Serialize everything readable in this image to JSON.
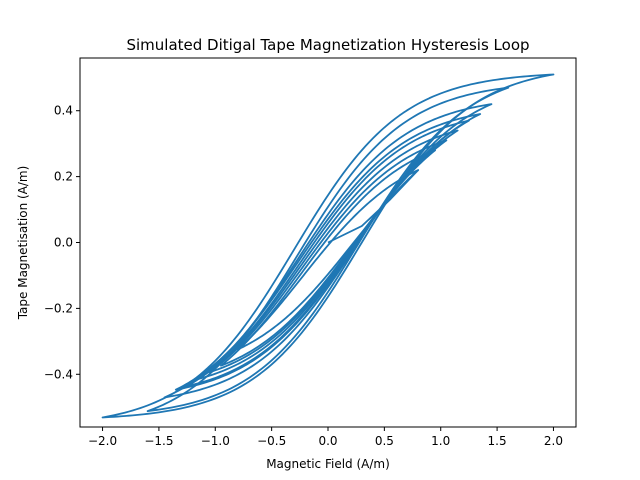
{
  "chart_data": {
    "type": "line",
    "title": "Simulated Ditigal Tape Magnetization Hysteresis Loop",
    "xlabel": "Magnetic Field (A/m)",
    "ylabel": "Tape Magnetisation (A/m)",
    "xlim": [
      -2.2,
      2.2
    ],
    "ylim": [
      -0.56,
      0.56
    ],
    "x_ticks": [
      -2.0,
      -1.5,
      -1.0,
      -0.5,
      0.0,
      0.5,
      1.0,
      1.5,
      2.0
    ],
    "x_tick_labels": [
      "−2.0",
      "−1.5",
      "−1.0",
      "−0.5",
      "0.0",
      "0.5",
      "1.0",
      "1.5",
      "2.0"
    ],
    "y_ticks": [
      -0.4,
      -0.2,
      0.0,
      0.2,
      0.4
    ],
    "y_tick_labels": [
      "−0.4",
      "−0.2",
      "0.0",
      "0.2",
      "0.4"
    ],
    "grid": false,
    "legend": "none",
    "series_color": "#1f77b4",
    "series": [
      {
        "description": "initial magnetisation curve then nested minor hysteresis loops with field amplitudes rising to 2.0",
        "loop_amplitudes": [
          0.8,
          0.95,
          1.05,
          1.15,
          1.25,
          1.35,
          1.45,
          1.6,
          2.0
        ],
        "initial_curve": {
          "x": [
            0.0,
            0.3,
            0.55,
            0.8
          ],
          "y": [
            0.0,
            0.05,
            0.13,
            0.22
          ]
        },
        "peak_points": {
          "x": [
            0.8,
            0.95,
            1.05,
            1.15,
            1.25,
            1.35,
            1.45,
            1.6,
            2.0
          ],
          "y": [
            0.22,
            0.28,
            0.31,
            0.34,
            0.37,
            0.39,
            0.42,
            0.47,
            0.51
          ]
        }
      }
    ]
  }
}
